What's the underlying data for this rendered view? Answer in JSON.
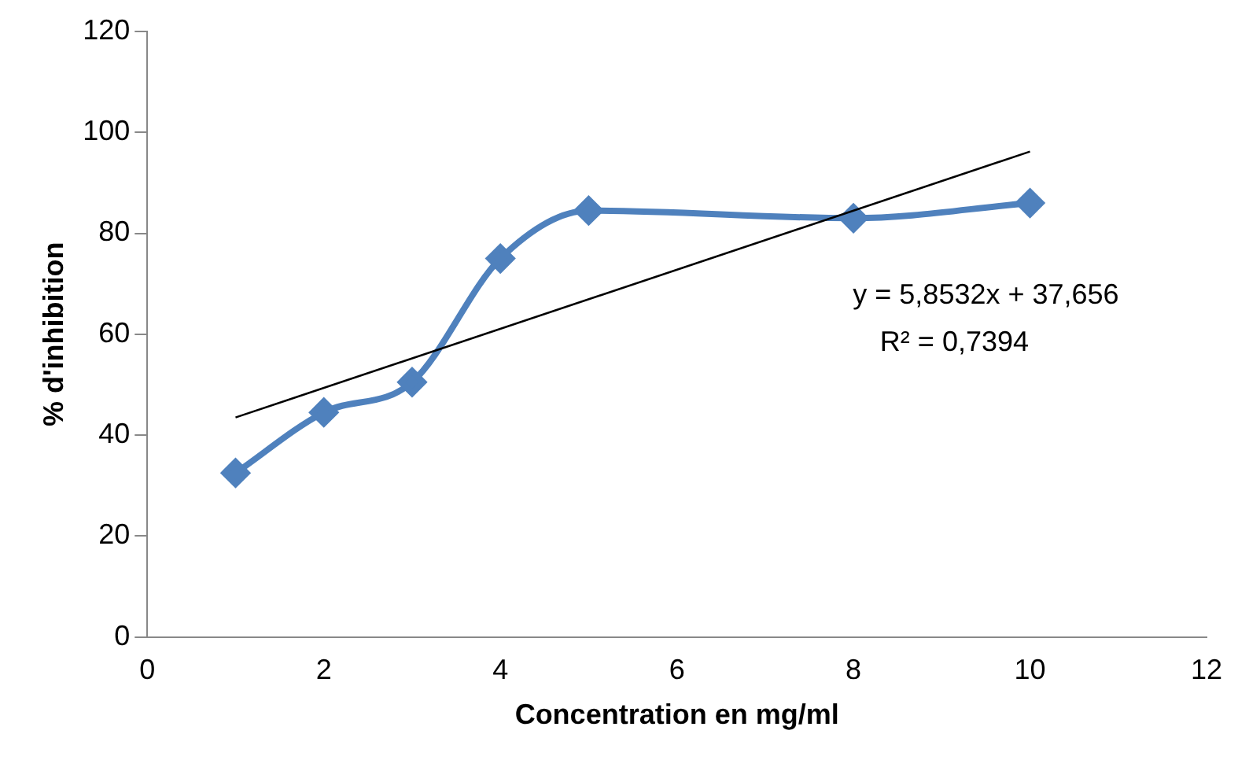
{
  "chart_data": {
    "type": "line",
    "xlabel": "Concentration en mg/ml",
    "ylabel": "% d'inhibition",
    "xlim": [
      0,
      12
    ],
    "xticks": [
      0,
      2,
      4,
      6,
      8,
      10,
      12
    ],
    "ylim": [
      0,
      120
    ],
    "yticks": [
      0,
      20,
      40,
      60,
      80,
      100,
      120
    ],
    "grid": false,
    "legend": false,
    "series": [
      {
        "color": "#4f81bd",
        "marker": "diamond",
        "x": [
          1,
          2,
          3,
          4,
          5,
          8,
          10
        ],
        "values": [
          32.5,
          44.5,
          50.5,
          75,
          84.5,
          83,
          86
        ]
      },
      {
        "color": "#000000",
        "marker": "none",
        "x": [
          1,
          10
        ],
        "values": [
          43.5,
          96.2
        ]
      }
    ],
    "annotations": [
      "y = 5,8532x + 37,656",
      "R² = 0,7394"
    ]
  }
}
